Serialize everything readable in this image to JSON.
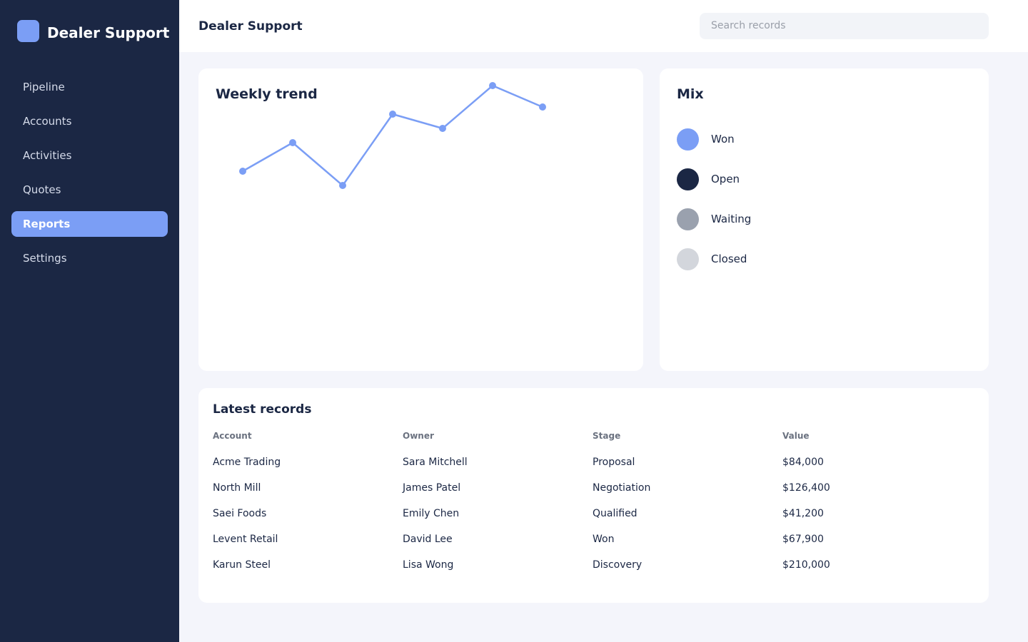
{
  "sidebar": {
    "brand": "Dealer Support",
    "nav": [
      "Pipeline",
      "Accounts",
      "Activities",
      "Quotes",
      "Reports",
      "Settings"
    ],
    "active": 4
  },
  "header": {
    "title": "Dealer Support",
    "search_placeholder": "Search records"
  },
  "chart_data": {
    "type": "line",
    "title": "Weekly trend",
    "values": [
      30,
      50,
      20,
      70,
      60,
      90,
      75
    ],
    "ylim": [
      0,
      100
    ],
    "color": "#7b9ef5"
  },
  "mix": {
    "title": "Mix",
    "items": [
      {
        "label": "Won",
        "color": "#7b9ef5"
      },
      {
        "label": "Open",
        "color": "#1b2744"
      },
      {
        "label": "Waiting",
        "color": "#9aa1ae"
      },
      {
        "label": "Closed",
        "color": "#d3d6dc"
      }
    ]
  },
  "table": {
    "title": "Latest records",
    "columns": [
      "Account",
      "Owner",
      "Stage",
      "Value"
    ],
    "rows": [
      [
        "Acme Trading",
        "Sara Mitchell",
        "Proposal",
        "$84,000"
      ],
      [
        "North Mill",
        "James Patel",
        "Negotiation",
        "$126,400"
      ],
      [
        "Saei Foods",
        "Emily Chen",
        "Qualified",
        "$41,200"
      ],
      [
        "Levent Retail",
        "David Lee",
        "Won",
        "$67,900"
      ],
      [
        "Karun Steel",
        "Lisa Wong",
        "Discovery",
        "$210,000"
      ]
    ]
  }
}
